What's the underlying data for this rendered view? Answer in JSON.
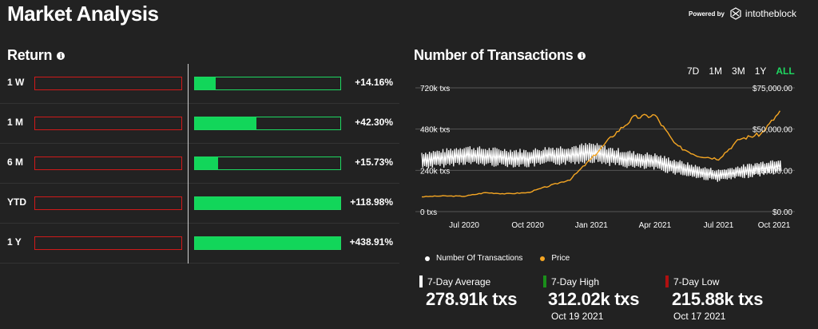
{
  "header": {
    "title": "Market Analysis",
    "powered_by": "Powered by",
    "brand": "intotheblock"
  },
  "return_section": {
    "title": "Return",
    "rows": [
      {
        "label": "1 W",
        "value": "+14.16%",
        "fill_pct": 14.16
      },
      {
        "label": "1 M",
        "value": "+42.30%",
        "fill_pct": 42.3
      },
      {
        "label": "6 M",
        "value": "+15.73%",
        "fill_pct": 15.73
      },
      {
        "label": "YTD",
        "value": "+118.98%",
        "fill_pct": 100
      },
      {
        "label": "1 Y",
        "value": "+438.91%",
        "fill_pct": 100
      }
    ]
  },
  "transactions_section": {
    "title": "Number of Transactions",
    "ranges": [
      "7D",
      "1M",
      "3M",
      "1Y",
      "ALL"
    ],
    "active_range": "ALL",
    "legend": [
      {
        "label": "Number Of Transactions",
        "color": "#ffffff"
      },
      {
        "label": "Price",
        "color": "#f5a623"
      }
    ],
    "stats": [
      {
        "label": "7-Day Average",
        "value": "278.91k txs",
        "date": "",
        "color": "#ffffff"
      },
      {
        "label": "7-Day High",
        "value": "312.02k txs",
        "date": "Oct 19 2021",
        "color": "#1a8f1a"
      },
      {
        "label": "7-Day Low",
        "value": "215.88k txs",
        "date": "Oct 17 2021",
        "color": "#b01010"
      }
    ]
  },
  "chart_data": {
    "type": "line",
    "left_axis": {
      "ticks": [
        "720k txs",
        "480k txs",
        "240k txs",
        "0 txs"
      ],
      "range": [
        0,
        720000
      ]
    },
    "right_axis": {
      "ticks": [
        "$75,000.00",
        "$50,000.00",
        "$25,000.00",
        "$0.00"
      ],
      "range": [
        0,
        75000
      ]
    },
    "x_ticks": [
      "Jul 2020",
      "Oct 2020",
      "Jan 2021",
      "Apr 2021",
      "Jul 2021",
      "Oct 2021"
    ],
    "x_range": [
      "2020-05",
      "2021-10"
    ],
    "series": [
      {
        "name": "Number Of Transactions",
        "color": "#ffffff",
        "x": [
          "2020-05",
          "2020-06",
          "2020-07",
          "2020-08",
          "2020-09",
          "2020-10",
          "2020-11",
          "2020-12",
          "2021-01",
          "2021-02",
          "2021-03",
          "2021-04",
          "2021-05",
          "2021-06",
          "2021-07",
          "2021-08",
          "2021-09",
          "2021-10"
        ],
        "values": [
          300000,
          310000,
          330000,
          320000,
          315000,
          310000,
          325000,
          330000,
          345000,
          320000,
          300000,
          290000,
          260000,
          230000,
          210000,
          230000,
          250000,
          270000
        ]
      },
      {
        "name": "Price",
        "color": "#f5a623",
        "x": [
          "2020-05",
          "2020-06",
          "2020-07",
          "2020-08",
          "2020-09",
          "2020-10",
          "2020-11",
          "2020-12",
          "2021-01",
          "2021-02",
          "2021-03",
          "2021-04",
          "2021-05",
          "2021-06",
          "2021-07",
          "2021-08",
          "2021-09",
          "2021-10"
        ],
        "values": [
          9000,
          9500,
          9300,
          11500,
          10800,
          11500,
          15500,
          19500,
          32000,
          46000,
          57000,
          58500,
          40000,
          34000,
          32000,
          44000,
          47000,
          62000
        ]
      }
    ]
  }
}
